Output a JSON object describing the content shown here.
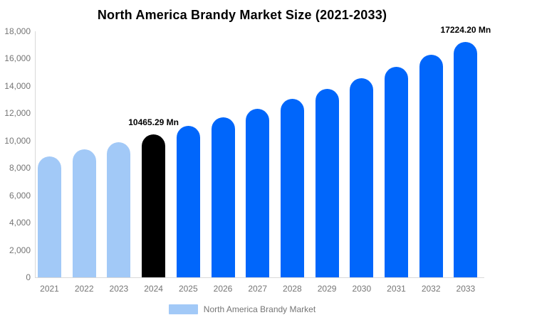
{
  "chart_data": {
    "type": "bar",
    "title": "North America Brandy Market Size (2021-2033)",
    "xlabel": "",
    "ylabel": "",
    "categories": [
      "2021",
      "2022",
      "2023",
      "2024",
      "2025",
      "2026",
      "2027",
      "2028",
      "2029",
      "2030",
      "2031",
      "2032",
      "2033"
    ],
    "values": [
      8865,
      9370,
      9900,
      10465.29,
      11060,
      11690,
      12355,
      13060,
      13800,
      14585,
      15415,
      16295,
      17224.2
    ],
    "bar_segments": [
      "historical",
      "historical",
      "historical",
      "base",
      "forecast",
      "forecast",
      "forecast",
      "forecast",
      "forecast",
      "forecast",
      "forecast",
      "forecast",
      "forecast"
    ],
    "colors": {
      "historical": "#a2c9f7",
      "base": "#000000",
      "forecast": "#0066fb"
    },
    "ylim": [
      0,
      18000
    ],
    "ytick_step": 2000,
    "ytick_labels": [
      "0",
      "2,000",
      "4,000",
      "6,000",
      "8,000",
      "10,000",
      "12,000",
      "14,000",
      "16,000",
      "18,000"
    ],
    "grid": "off",
    "annotations": [
      {
        "text": "10465.29 Mn",
        "year": "2024"
      },
      {
        "text": "17224.20 Mn",
        "year": "2033"
      }
    ],
    "legend": {
      "label": "North America Brandy Market",
      "swatch_color": "#a2c9f7",
      "position": "bottom-center"
    }
  }
}
